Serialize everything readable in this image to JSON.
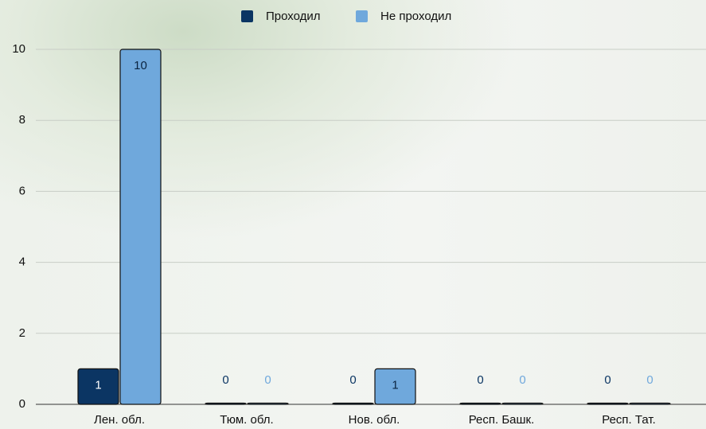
{
  "chart_data": {
    "type": "bar",
    "categories": [
      "Лен. обл.",
      "Тюм. обл.",
      "Нов. обл.",
      "Респ. Башк.",
      "Респ. Тат."
    ],
    "series": [
      {
        "name": "Проходил",
        "color": "#0b3563",
        "values": [
          1,
          0,
          0,
          0,
          0
        ]
      },
      {
        "name": "Не проходил",
        "color": "#6fa8dc",
        "values": [
          10,
          0,
          1,
          0,
          0
        ]
      }
    ],
    "ylim": [
      0,
      10
    ],
    "yticks": [
      0,
      2,
      4,
      6,
      8,
      10
    ],
    "grid": true,
    "legend": "top"
  }
}
